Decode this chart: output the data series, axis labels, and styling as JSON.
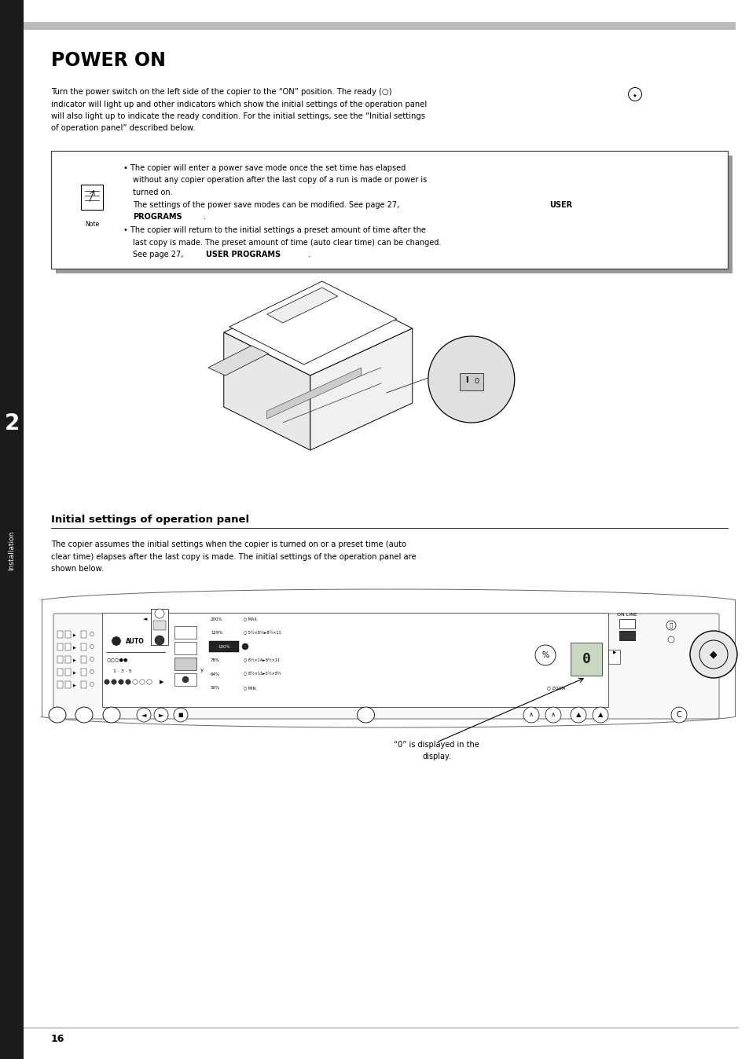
{
  "bg_color": "#ffffff",
  "page_width": 9.54,
  "page_height": 13.48,
  "top_bar_color": "#bbbbbb",
  "left_sidebar_color": "#1a1a1a",
  "sidebar_text": "Installation",
  "sidebar_number": "2",
  "title": "POWER ON",
  "page_number": "16",
  "panel_caption_line1": "“0” is displayed in the",
  "panel_caption_line2": "display."
}
